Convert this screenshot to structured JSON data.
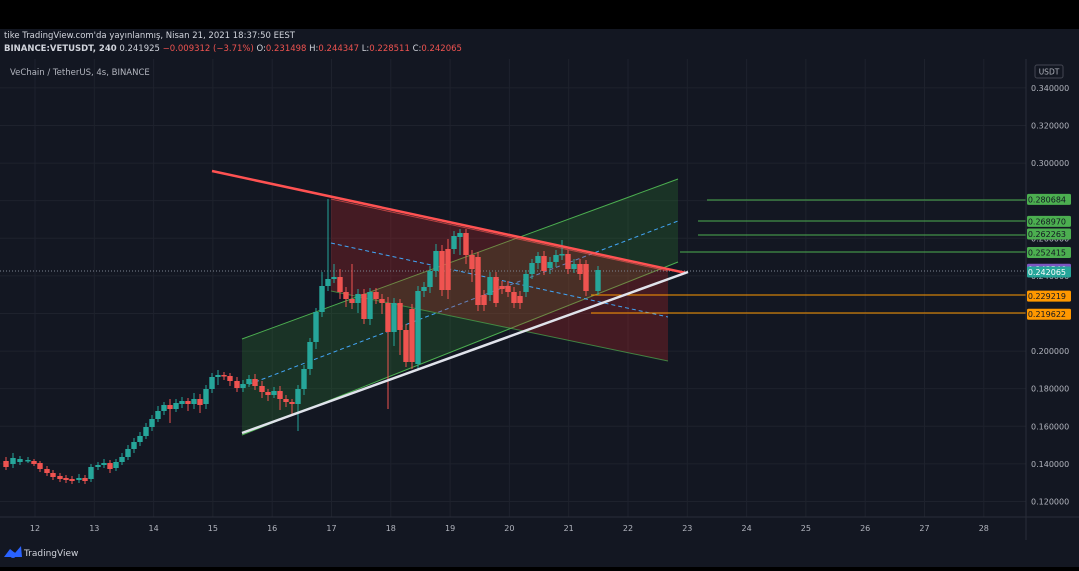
{
  "header": {
    "published_line": "tike TradingView.com'da yayınlanmış, Nisan 21, 2021 18:37:50 EEST",
    "symbol": "BINANCE:VETUSDT, 240",
    "last": "0.241925",
    "change": "−0.009312 (−3.71%)",
    "o_label": "O:",
    "o_value": "0.231498",
    "h_label": "H:",
    "h_value": "0.244347",
    "l_label": "L:",
    "l_value": "0.228511",
    "c_label": "C:",
    "c_value": "0.242065"
  },
  "chart": {
    "title": "VeChain / TetherUS, 4s, BINANCE",
    "currency_button": "USDT",
    "price_ticks": [
      "0.340000",
      "0.320000",
      "0.300000",
      "0.280000",
      "0.260000",
      "0.240000",
      "0.220000",
      "0.200000",
      "0.180000",
      "0.160000",
      "0.140000",
      "0.120000"
    ],
    "date_ticks": [
      "12",
      "13",
      "14",
      "15",
      "16",
      "17",
      "18",
      "19",
      "20",
      "21",
      "22",
      "23",
      "24",
      "25",
      "26",
      "27",
      "28"
    ],
    "level_labels": [
      {
        "text": "0.280684",
        "color": "#4caf50",
        "text_color": "#131722"
      },
      {
        "text": "0.268970",
        "color": "#4caf50",
        "text_color": "#131722"
      },
      {
        "text": "0.262263",
        "color": "#4caf50",
        "text_color": "#131722"
      },
      {
        "text": "0.252415",
        "color": "#4caf50",
        "text_color": "#131722"
      },
      {
        "text": "0.243546",
        "color": "#7e57c2",
        "text_color": "#ffffff"
      },
      {
        "text": "0.242065",
        "color": "#26a69a",
        "text_color": "#ffffff"
      },
      {
        "text": "0.229219",
        "color": "#ff9800",
        "text_color": "#131722"
      },
      {
        "text": "0.219622",
        "color": "#ff9800",
        "text_color": "#131722"
      }
    ],
    "colors": {
      "up": "#26a69a",
      "down": "#ef5350",
      "grid": "#1e222d",
      "axis_text": "#b2b5be",
      "background": "#131722"
    }
  },
  "footer": {
    "brand": "TradingView"
  }
}
